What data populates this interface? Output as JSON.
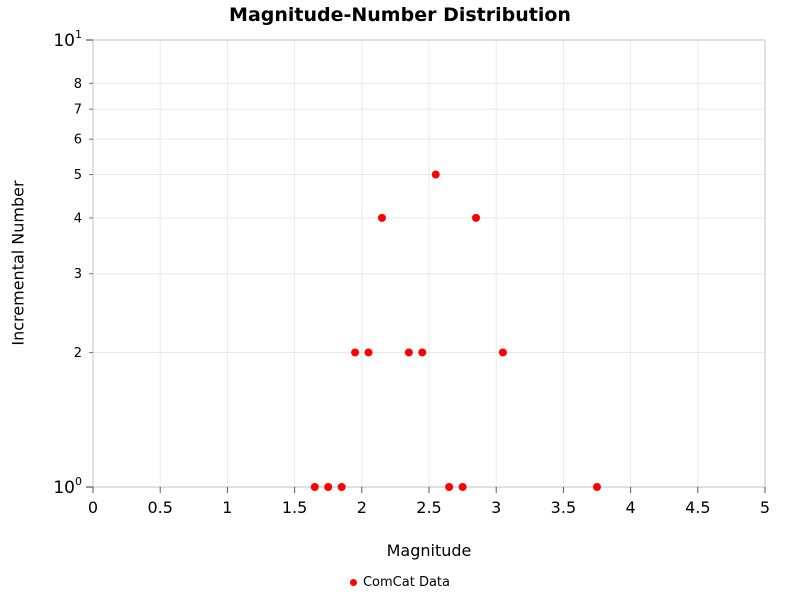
{
  "chart_data": {
    "type": "scatter",
    "title": "Magnitude-Number Distribution",
    "xlabel": "Magnitude",
    "ylabel": "Incremental Number",
    "xlim": [
      0,
      5
    ],
    "ylim": [
      1,
      10
    ],
    "y_scale": "log",
    "grid": true,
    "x_ticks": [
      0,
      0.5,
      1,
      1.5,
      2,
      2.5,
      3,
      3.5,
      4,
      4.5,
      5
    ],
    "y_major_ticks": [
      1,
      10
    ],
    "y_minor_ticks": [
      2,
      3,
      4,
      5,
      6,
      7,
      8
    ],
    "legend": {
      "label": "ComCat Data",
      "position": "bottom-center"
    },
    "series": [
      {
        "name": "ComCat Data",
        "color": "#ff0000",
        "points": [
          [
            1.65,
            1
          ],
          [
            1.75,
            1
          ],
          [
            1.85,
            1
          ],
          [
            1.95,
            2
          ],
          [
            2.05,
            2
          ],
          [
            2.15,
            4
          ],
          [
            2.35,
            2
          ],
          [
            2.45,
            2
          ],
          [
            2.55,
            5
          ],
          [
            2.65,
            1
          ],
          [
            2.75,
            1
          ],
          [
            2.85,
            4
          ],
          [
            3.05,
            2
          ],
          [
            3.75,
            1
          ]
        ]
      }
    ]
  }
}
